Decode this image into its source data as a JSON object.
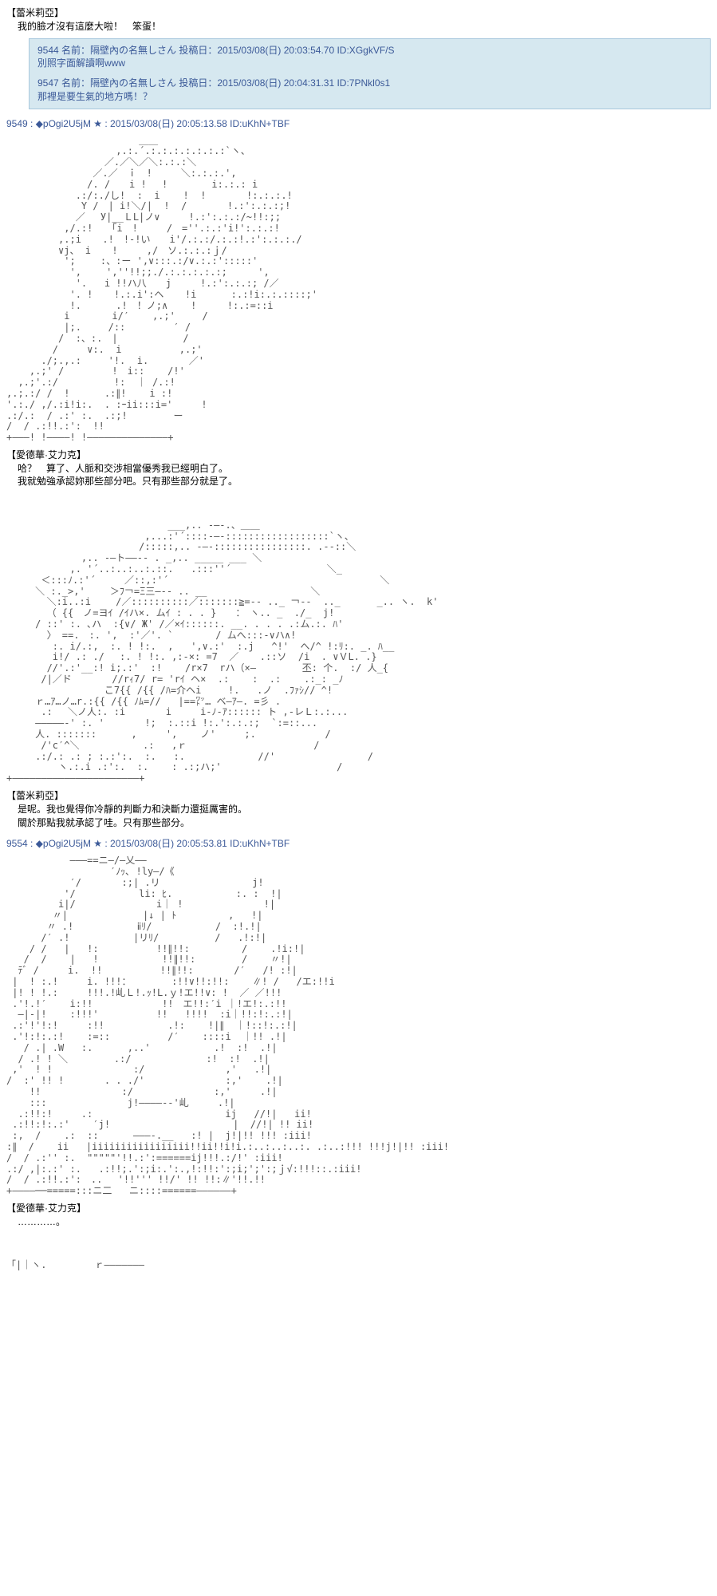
{
  "top": {
    "char_label": "【蕾米莉亞】",
    "line": "我的臉才沒有這麼大啦！　笨蛋！"
  },
  "quotes": {
    "q1_header": "9544 名前：隔壁內の名無しさん 投稿日：2015/03/08(日) 20:03:54.70 ID:XGgkVF/S",
    "q1_body": "別照字面解讀啊www",
    "q2_header": "9547 名前：隔壁內の名無しさん 投稿日：2015/03/08(日) 20:04:31.31 ID:7PNkl0s1",
    "q2_body": "那裡是要生氣的地方嗎！？"
  },
  "post1": {
    "header": "9549 : ◆pOgi2U5jM ★ : 2015/03/08(日) 20:05:13.58 ID:uKhN+TBF",
    "aa": "                       ＿＿\n                   ,.:.´.:.:.:.:.:.:.:`ヽ、\n                 ／.／＼／＼:.:.:＼\n               ／.／　ｉ　!　　　＼:.:.:.',\n              /. /　　i !　 !　　　　 i:.:.: i\n            .:/:./し!  :  i    !  !       !:.:.:.!\n             Y /　| i!＼/|  !  /       !.:':.:.:;!\n            ／　 У|__ＬL|ノ∨　　　!.:':.:.:/~!!:;;\n          ,/.:!　　｢i　!　　　/　=''.:.:'i!':.:.:!\n         ,.;i  　.!　!-!い　　i'/.:.:/.:.:!.:':.:.:./\n         ∨j、 i 　 !     ,/　ソ.:.:.:ｊ/\n          ';　　 :、:ー ',∨:::.:/∨.:.:':::::'\n           ',　　 ',''!!;;./.:.:.:.:.:;　 　 ',\n            '.   i !!ハ八　　j　　　!.:':.:.:; /／\n           '. ! 　 !.:.i':ヘ　  !i      :.:!i:.:.::::;'\n           !.      .!　！ノ;∧    !　　  !:.:=::i\n          i　    　i/′    ,.;'　   /\n          |;.　   /::　     　′ /\n         /  :、:.　|   　 　    /\n        /     ∨:.  i          ,.;'\n      ./;.,.:  　 '!.  i.       ／'\n    ,.;' /　　     !　i::    /!'\n  ,.;'.:/　        !:  ｜ /.:!\n,.;.:/ /  !      .:∥!    i :!\n'.:./ ,/.:i!i:.  . :ｰii:::i='     !\n.:/.:  / .:' :.  .:;!        ー\n/  / .:!!.:':  !!\n+―――! !――――! !――――――――――――――+",
    "char_label": "【愛德華·艾力克】",
    "line1": "哈？　算了、人脈和交涉相當優秀我已經明白了。",
    "line2": "我就勉強承認妳那些部分吧。只有那些部分就是了。"
  },
  "post2": {
    "aa": "                            ___,.. -―-.、＿＿\n                        ,...:'´::::-―-::::::::::::::::::`ヽ、\n                       /:::::,.. -―-::::::::::::::::. .-‐::＼\n             ,.. -―ト――‐‐ . _,.. _____ ___ ＼\n           ,. '´..:..:..:.::.   .:::''´　　　　　　　　　　＼_\n      ＜:::ﾉ.:'´     ／::,:'´                                 　  ＼\n     ＼ :._>,'　　 ＞ﾌ￢=Ξ三―-- .. __          　　  　 ＼\n       ＼:i..:i　　 /／::::::::::／:::::::≧=-- .._ ￢‐-  .._ 　 　 _.. ヽ.  k'\n       （ {{　ノ=ヨｲ /ｲハ×. ムｲ : . . }　　：　ヽ.. _  ./_  j!\n     / ::' :. ､ハ  :{∨/ Ж' /／×ｲ::::::. __. . . . .:ム.:. ﾊ'\n       〉 ==.　:. ',  :'／'. `  　 　 / ムへ:::-∨ハ∧!\n        :. i/.:,  :. ! !:.  ,   ',∨.:'  :.j   ^!'  へ/^ !:ﾘ:. _. ﾊ__\n        i!/ .: ./　 :. ! !:. ,:-×: =7  ／　  .::ソ  /i  . ∨ＶL. .}\n       //'.:'__:! i;.:'  :!    /r×7  rハ（×―        丕: 个.  :/ 人_{\n      /|／ド       //rｨ7/ r= 'rｲ ヘ×  .:    :  .:    .:_: _ﾉ\n                 こ7{{ /{{ /ﾊ=介ヘi 　  !.   .ノ  .ﾌｧｼ// ^!\n     ｒ…ｱ…ノ…r.:{{ /{{ ﾉﾑ=//   |==㍗… ベ―ｱ―. =彡 .\n      .: 　＼ノ人:. :i       i     i-ﾉ-ｱ:::::: ト ,‐レＬ:.:...\n     ―――――‐' :. '       !;  :.::i !:.':.:.:;  `:=::...\n     人. :::::::      ,     ',    ノ'　　　;.            /\n      /'c′^＼           .:   ,ｒ                      /\n     .:/.: .: ; :.:':.  :.   :.        　   //'                /\n         ヽ.:.i .:':.  :.    : .:;ハ;'                    /\n+――――――――――――――――――――――+",
    "char_label": "【蕾米莉亞】",
    "line1": "是呢。我也覺得你冷靜的判斷力和決斷力還挺厲害的。",
    "line2": "關於那點我就承認了哇。只有那些部分。"
  },
  "post3": {
    "header": "9554 : ◆pOgi2U5jM ★ : 2015/03/08(日) 20:05:53.81 ID:uKhN+TBF",
    "aa": "           ―――==ニ―/―乂――\n                  ′ﾉｯ､ !ly―/《\n           ′/       :;| .リ                j!\n          '/           li: ﾋ.           :. :  !|\n         i|/              i｜ !              !|\n        〃|             |↓ | ﾄ         ,   !|\n       〃 .!           ⅱﾘ/           /  :!.!|\n      /′ .!           |リﾘ/　        /   .!:!|\n    / /   |   !:          !!∥!!:         /    .!i:!|\n   /  /    |   !           !!∥!!:        /    〃!|\n  ﾃﾞ /     i.  !!          !!∥!!:       /′   /! :!|\n |  ! :.!     i. !!!：       :!!∨!!:!!:    ∥! /   /エ:!!i\n |! ! !.:     !!!.!乢Ｌ!.ｯ!L.ｙ!エ!!∨: !  ／ ／!!!\n .'!.!′    i:!!            !!　エ!!:′i ｜!エ!:.:!!\n  ―|-|!    :!!!'          !!   !!!!  :i｜!!:!:.:!|\n .:'!'!:!     :!!           .!:    !|∥  ｜!::!:.:!|\n .'!:!:.:!    :=::          /′    ::::i  ｜!! .!|\n   / .| .W   :.      ,..'           .!  :!  .!|\n  / .! ! ＼        .:/             :!  :!  .!|\n ,'  ! !              :/              ,'   .!|\n/  :' !! !       . . ./'              :,'    .!|\n    !!              :/              :,'     .!|\n    :::              j!――――--'乢     .!|\n  .:!!:!　　　.:                       ij   //!|   ii!\n .:!!:!:.:'    ′j!　    　              |  //!| !! ii!\n :,  /    .:  ::      ―――-.__   :! |  j!|!! !!! :iii!\n:∥  /    ii   |iiiiiiiiiiiiiiiii!!ii!!i!i.:..:..:..:. .:..:!!! !!!j!|!! :iii!\n/  / .:'' :.  \"\"\"\"\"'!!.:':======ij!!!.:/!' :iii!\n.:/ ,|:.:' :.   .:!!;.':;i:.':.,!:!!:':;i;';':;ｊ√:!!!::.:iii!\n/  / .:!!.:':　.. 　'!!''' !!/' !! !!:∥'!!.!!\n+――――──=====:::ニ二   ニ::::======――――――+",
    "char_label": "【愛德華·艾力克】",
    "line1": "…………。"
  },
  "bottom_aa": "「|｜ヽ.　　　　　ｒ―――――――"
}
